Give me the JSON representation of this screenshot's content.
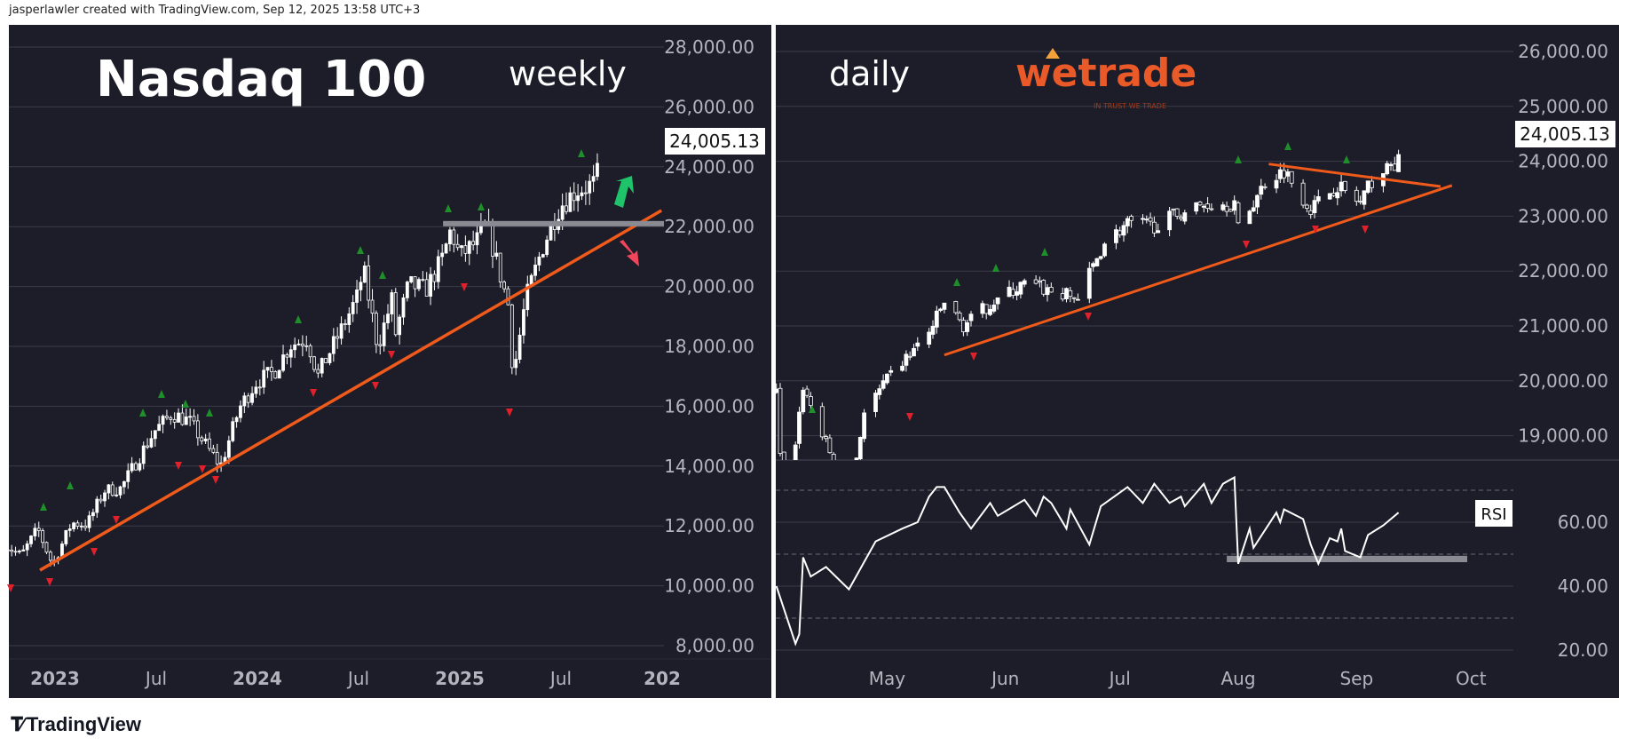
{
  "header": {
    "caption": "jasperlawler created with TradingView.com, Sep 12, 2025 13:58 UTC+3"
  },
  "footer": {
    "brand": "TradingView",
    "logo_icon": "tradingview-logo-icon"
  },
  "colors": {
    "background": "#1d1d29",
    "grid": "#3b3b4a",
    "axis_text": "#b2b5be",
    "trendline": "#f05a1a",
    "pivot_high": "#1f8f2a",
    "pivot_low": "#e0202a",
    "arrow_up": "#1fc46a",
    "arrow_down": "#f0455a",
    "zone": "#8a8a92",
    "brand": "#ea5a28"
  },
  "left_chart": {
    "title": "Nasdaq 100",
    "timeframe": "weekly",
    "last_price": "24,005.13",
    "price_axis": [
      "28,000.00",
      "26,000.00",
      "24,000.00",
      "22,000.00",
      "20,000.00",
      "18,000.00",
      "16,000.00",
      "14,000.00",
      "12,000.00",
      "10,000.00",
      "8,000.00"
    ],
    "time_axis": [
      "2023",
      "Jul",
      "2024",
      "Jul",
      "2025",
      "Jul",
      "202"
    ],
    "chart_data": {
      "type": "candlestick",
      "interval": "weekly",
      "ylim": [
        7500,
        28500
      ],
      "closes": [
        [
          "2022-10-01",
          11400
        ],
        [
          "2022-11-01",
          11000
        ],
        [
          "2022-12-01",
          11900
        ],
        [
          "2022-12-28",
          10700
        ],
        [
          "2023-01-31",
          12100
        ],
        [
          "2023-02-28",
          12050
        ],
        [
          "2023-03-31",
          13180
        ],
        [
          "2023-04-30",
          13250
        ],
        [
          "2023-05-31",
          14250
        ],
        [
          "2023-06-30",
          15180
        ],
        [
          "2023-07-31",
          15750
        ],
        [
          "2023-08-31",
          15500
        ],
        [
          "2023-09-30",
          14700
        ],
        [
          "2023-10-27",
          14000
        ],
        [
          "2023-11-30",
          15950
        ],
        [
          "2023-12-31",
          16830
        ],
        [
          "2024-01-31",
          17140
        ],
        [
          "2024-02-29",
          18040
        ],
        [
          "2024-03-31",
          18250
        ],
        [
          "2024-04-19",
          17000
        ],
        [
          "2024-04-30",
          17440
        ],
        [
          "2024-05-31",
          18540
        ],
        [
          "2024-06-30",
          19680
        ],
        [
          "2024-07-10",
          20600
        ],
        [
          "2024-08-05",
          18000
        ],
        [
          "2024-08-31",
          19570
        ],
        [
          "2024-09-06",
          18400
        ],
        [
          "2024-09-30",
          20060
        ],
        [
          "2024-10-31",
          19890
        ],
        [
          "2024-11-30",
          20930
        ],
        [
          "2024-12-15",
          21900
        ],
        [
          "2024-12-31",
          21010
        ],
        [
          "2025-01-31",
          21480
        ],
        [
          "2025-02-18",
          22100
        ],
        [
          "2025-03-31",
          19280
        ],
        [
          "2025-04-07",
          17000
        ],
        [
          "2025-04-30",
          19570
        ],
        [
          "2025-05-31",
          21340
        ],
        [
          "2025-06-30",
          22680
        ],
        [
          "2025-07-31",
          23220
        ],
        [
          "2025-08-31",
          23420
        ],
        [
          "2025-09-12",
          24005
        ]
      ],
      "trendline": [
        [
          "2022-12-05",
          10520
        ],
        [
          "2025-12-31",
          22540
        ]
      ],
      "resistance_zone": {
        "from": "2024-12-01",
        "price": 22100
      },
      "outlook_arrows": [
        "up",
        "down"
      ]
    }
  },
  "right_chart": {
    "timeframe": "daily",
    "brand_logo": {
      "name": "wetrade",
      "tagline": "IN TRUST WE TRADE"
    },
    "last_price": "24,005.13",
    "price_axis": [
      "26,000.00",
      "25,000.00",
      "24,000.00",
      "23,000.00",
      "22,000.00",
      "21,000.00",
      "20,000.00",
      "19,000.00"
    ],
    "time_axis": [
      "May",
      "Jun",
      "Jul",
      "Aug",
      "Sep",
      "Oct"
    ],
    "rsi_label": "RSI",
    "rsi_axis": [
      "60.00",
      "40.00",
      "20.00"
    ],
    "chart_data": {
      "type": "candlestick",
      "interval": "daily",
      "ylim": [
        18550,
        26600
      ],
      "closes": [
        [
          "2025-04-02",
          19800
        ],
        [
          "2025-04-04",
          17400
        ],
        [
          "2025-04-09",
          19900
        ],
        [
          "2025-04-21",
          17800
        ],
        [
          "2025-04-25",
          19430
        ],
        [
          "2025-05-02",
          20100
        ],
        [
          "2025-05-12",
          20870
        ],
        [
          "2025-05-16",
          21430
        ],
        [
          "2025-05-21",
          21000
        ],
        [
          "2025-05-28",
          21400
        ],
        [
          "2025-06-06",
          21760
        ],
        [
          "2025-06-13",
          21630
        ],
        [
          "2025-06-20",
          21500
        ],
        [
          "2025-06-27",
          22530
        ],
        [
          "2025-07-03",
          22860
        ],
        [
          "2025-07-10",
          22830
        ],
        [
          "2025-07-17",
          23070
        ],
        [
          "2025-07-24",
          23230
        ],
        [
          "2025-07-31",
          23220
        ],
        [
          "2025-08-01",
          22760
        ],
        [
          "2025-08-08",
          23620
        ],
        [
          "2025-08-13",
          23840
        ],
        [
          "2025-08-20",
          23140
        ],
        [
          "2025-08-27",
          23570
        ],
        [
          "2025-09-02",
          23220
        ],
        [
          "2025-09-05",
          23650
        ],
        [
          "2025-09-12",
          24005
        ]
      ],
      "trendline_support": [
        [
          "2025-05-16",
          20470
        ],
        [
          "2025-09-26",
          23560
        ]
      ],
      "trendline_resistance": [
        [
          "2025-08-09",
          23950
        ],
        [
          "2025-09-23",
          23540
        ]
      ],
      "rsi": {
        "ylim": [
          15,
          78
        ],
        "levels": [
          70,
          50,
          30
        ],
        "values": [
          [
            "2025-04-02",
            40
          ],
          [
            "2025-04-07",
            22
          ],
          [
            "2025-04-08",
            25
          ],
          [
            "2025-04-09",
            49
          ],
          [
            "2025-04-11",
            43
          ],
          [
            "2025-04-15",
            46
          ],
          [
            "2025-04-21",
            39
          ],
          [
            "2025-04-28",
            54
          ],
          [
            "2025-05-05",
            58
          ],
          [
            "2025-05-09",
            60
          ],
          [
            "2025-05-12",
            68
          ],
          [
            "2025-05-14",
            71
          ],
          [
            "2025-05-16",
            71
          ],
          [
            "2025-05-20",
            63
          ],
          [
            "2025-05-23",
            58
          ],
          [
            "2025-05-28",
            66
          ],
          [
            "2025-05-30",
            62
          ],
          [
            "2025-06-06",
            67
          ],
          [
            "2025-06-09",
            62
          ],
          [
            "2025-06-11",
            68
          ],
          [
            "2025-06-13",
            66
          ],
          [
            "2025-06-17",
            58
          ],
          [
            "2025-06-18",
            64
          ],
          [
            "2025-06-23",
            53
          ],
          [
            "2025-06-26",
            65
          ],
          [
            "2025-07-03",
            71
          ],
          [
            "2025-07-07",
            66
          ],
          [
            "2025-07-10",
            72
          ],
          [
            "2025-07-14",
            66
          ],
          [
            "2025-07-17",
            68
          ],
          [
            "2025-07-18",
            65
          ],
          [
            "2025-07-23",
            72
          ],
          [
            "2025-07-25",
            66
          ],
          [
            "2025-07-28",
            72
          ],
          [
            "2025-07-31",
            74
          ],
          [
            "2025-08-01",
            47
          ],
          [
            "2025-08-04",
            58
          ],
          [
            "2025-08-05",
            52
          ],
          [
            "2025-08-11",
            63
          ],
          [
            "2025-08-12",
            60
          ],
          [
            "2025-08-13",
            64
          ],
          [
            "2025-08-18",
            61
          ],
          [
            "2025-08-20",
            53
          ],
          [
            "2025-08-22",
            47
          ],
          [
            "2025-08-25",
            55
          ],
          [
            "2025-08-27",
            54
          ],
          [
            "2025-08-28",
            58
          ],
          [
            "2025-08-29",
            51
          ],
          [
            "2025-09-02",
            49
          ],
          [
            "2025-09-04",
            56
          ],
          [
            "2025-09-08",
            59
          ],
          [
            "2025-09-10",
            61
          ],
          [
            "2025-09-12",
            63
          ]
        ],
        "support_zone": {
          "from": "2025-07-29",
          "to": "2025-09-30",
          "range": [
            47.5,
            49.5
          ]
        }
      }
    }
  }
}
